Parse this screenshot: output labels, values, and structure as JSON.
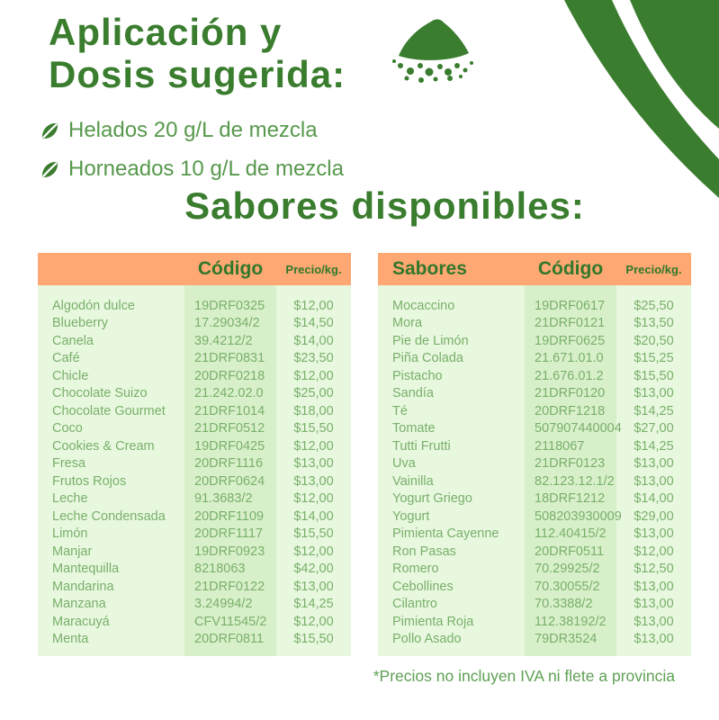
{
  "header": {
    "title_line1": "Aplicación y",
    "title_line2": "Dosis sugerida:",
    "bullets": [
      {
        "label": "Helados 20 g/L de mezcla"
      },
      {
        "label": "Horneados 10 g/L de mezcla"
      }
    ],
    "section_heading": "Sabores disponibles:"
  },
  "tables": {
    "left": {
      "headers": {
        "name": "",
        "code": "Código",
        "price": "Precio/kg."
      },
      "rows": [
        {
          "name": "Algodón dulce",
          "code": "19DRF0325",
          "price": "$12,00"
        },
        {
          "name": "Blueberry",
          "code": "17.29034/2",
          "price": "$14,50"
        },
        {
          "name": "Canela",
          "code": "39.4212/2",
          "price": "$14,00"
        },
        {
          "name": "Café",
          "code": "21DRF0831",
          "price": "$23,50"
        },
        {
          "name": "Chicle",
          "code": "20DRF0218",
          "price": "$12,00"
        },
        {
          "name": "Chocolate Suizo",
          "code": "21.242.02.0",
          "price": "$25,00"
        },
        {
          "name": "Chocolate Gourmet",
          "code": "21DRF1014",
          "price": "$18,00"
        },
        {
          "name": "Coco",
          "code": "21DRF0512",
          "price": "$15,50"
        },
        {
          "name": "Cookies & Cream",
          "code": "19DRF0425",
          "price": "$12,00"
        },
        {
          "name": "Fresa",
          "code": "20DRF1116",
          "price": "$13,00"
        },
        {
          "name": "Frutos Rojos",
          "code": "20DRF0624",
          "price": "$13,00"
        },
        {
          "name": "Leche",
          "code": "91.3683/2",
          "price": "$12,00"
        },
        {
          "name": "Leche Condensada",
          "code": "20DRF1109",
          "price": "$14,00"
        },
        {
          "name": "Limón",
          "code": "20DRF1117",
          "price": "$15,50"
        },
        {
          "name": "Manjar",
          "code": "19DRF0923",
          "price": "$12,00"
        },
        {
          "name": "Mantequilla",
          "code": "8218063",
          "price": "$42,00"
        },
        {
          "name": "Mandarina",
          "code": "21DRF0122",
          "price": "$13,00"
        },
        {
          "name": "Manzana",
          "code": "3.24994/2",
          "price": "$14,25"
        },
        {
          "name": "Maracuyá",
          "code": "CFV11545/2",
          "price": "$12,00"
        },
        {
          "name": "Menta",
          "code": "20DRF0811",
          "price": "$15,50"
        }
      ]
    },
    "right": {
      "headers": {
        "name": "Sabores",
        "code": "Código",
        "price": "Precio/kg."
      },
      "rows": [
        {
          "name": "Mocaccino",
          "code": "19DRF0617",
          "price": "$25,50"
        },
        {
          "name": "Mora",
          "code": "21DRF0121",
          "price": "$13,50"
        },
        {
          "name": "Pie de Limón",
          "code": "19DRF0625",
          "price": "$20,50"
        },
        {
          "name": "Piña Colada",
          "code": "21.671.01.0",
          "price": "$15,25"
        },
        {
          "name": "Pistacho",
          "code": "21.676.01.2",
          "price": "$15,50"
        },
        {
          "name": "Sandía",
          "code": "21DRF0120",
          "price": "$13,00"
        },
        {
          "name": "Té",
          "code": "20DRF1218",
          "price": "$14,25"
        },
        {
          "name": "Tomate",
          "code": "507907440004",
          "price": "$27,00"
        },
        {
          "name": "Tutti Frutti",
          "code": "2118067",
          "price": "$14,25"
        },
        {
          "name": "Uva",
          "code": "21DRF0123",
          "price": "$13,00"
        },
        {
          "name": "Vainilla",
          "code": "82.123.12.1/2",
          "price": "$13,00"
        },
        {
          "name": "Yogurt Griego",
          "code": "18DRF1212",
          "price": "$14,00"
        },
        {
          "name": "Yogurt",
          "code": "508203930009",
          "price": "$29,00"
        },
        {
          "name": "Pimienta Cayenne",
          "code": "112.40415/2",
          "price": "$13,00"
        },
        {
          "name": "Ron Pasas",
          "code": "20DRF0511",
          "price": "$12,00"
        },
        {
          "name": "Romero",
          "code": "70.29925/2",
          "price": "$12,50"
        },
        {
          "name": "Cebollines",
          "code": "70.30055/2",
          "price": "$13,00"
        },
        {
          "name": "Cilantro",
          "code": "70.3388/2",
          "price": "$13,00"
        },
        {
          "name": "Pimienta Roja",
          "code": "112.38192/2",
          "price": "$13,00"
        },
        {
          "name": "Pollo Asado",
          "code": "79DR3524",
          "price": "$13,00"
        }
      ]
    }
  },
  "footnote": "*Precios no incluyen IVA ni flete a provincia",
  "icons": {
    "powder_pile": "powder-pile-icon",
    "leaf_bullet": "leaf-icon",
    "corner_decoration": "corner-leaf-decoration"
  },
  "colors": {
    "dark_green": "#3a7d2e",
    "medium_green": "#57994c",
    "table_text_green": "#7aaf6b",
    "header_orange": "#ffa873",
    "body_light_green": "#e7f8de",
    "code_band_green": "#d8f0ca"
  }
}
